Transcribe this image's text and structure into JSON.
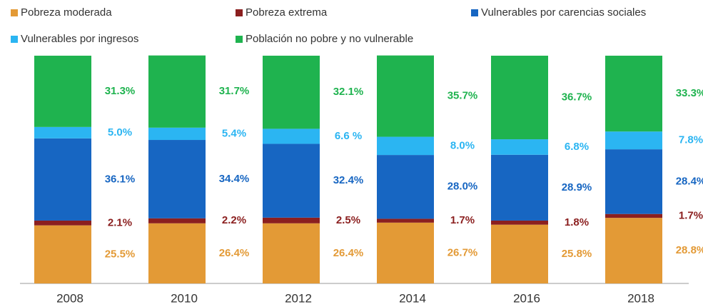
{
  "chart_data": {
    "type": "stacked_bar",
    "categories": [
      "2008",
      "2010",
      "2012",
      "2014",
      "2016",
      "2018"
    ],
    "ylim": [
      0,
      100
    ],
    "legend": "top",
    "series": [
      {
        "name": "Pobreza moderada",
        "color": "#e39a36",
        "values": [
          25.5,
          26.4,
          26.4,
          26.7,
          25.8,
          28.8
        ],
        "value_labels": [
          "25.5%",
          "26.4%",
          "26.4%",
          "26.7%",
          "25.8%",
          "28.8%"
        ]
      },
      {
        "name": "Pobreza extrema",
        "color": "#8b1f1f",
        "values": [
          2.1,
          2.2,
          2.5,
          1.7,
          1.8,
          1.7
        ],
        "value_labels": [
          "2.1%",
          "2.2%",
          "2.5%",
          "1.7%",
          "1.8%",
          "1.7%"
        ]
      },
      {
        "name": "Vulnerables por carencias sociales",
        "color": "#1766c2",
        "values": [
          36.1,
          34.4,
          32.4,
          28.0,
          28.9,
          28.4
        ],
        "value_labels": [
          "36.1%",
          "34.4%",
          "32.4%",
          "28.0%",
          "28.9%",
          "28.4%"
        ]
      },
      {
        "name": "Vulnerables por ingresos",
        "color": "#2bb5f2",
        "values": [
          5.0,
          5.4,
          6.6,
          8.0,
          6.8,
          7.8
        ],
        "value_labels": [
          "5.0%",
          "5.4%",
          "6.6 %",
          "8.0%",
          "6.8%",
          "7.8%"
        ]
      },
      {
        "name": "Población no pobre y no vulnerable",
        "color": "#1fb34f",
        "values": [
          31.3,
          31.7,
          32.1,
          35.7,
          36.7,
          33.3
        ],
        "value_labels": [
          "31.3%",
          "31.7%",
          "32.1%",
          "35.7%",
          "36.7%",
          "33.3%"
        ]
      }
    ]
  }
}
